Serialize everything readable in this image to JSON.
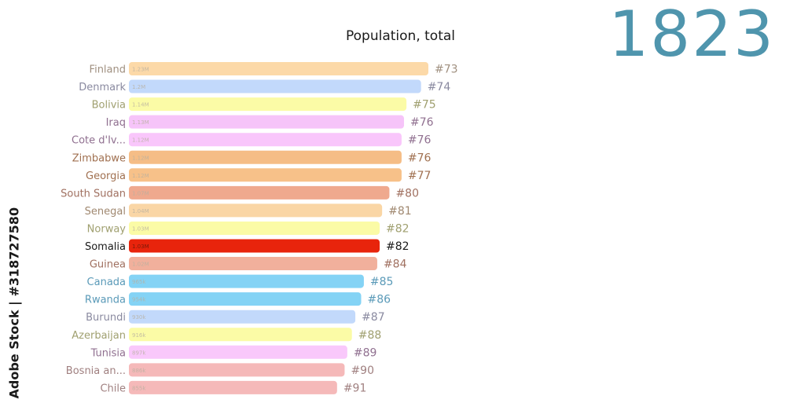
{
  "chart_data": {
    "type": "bar",
    "title": "Population, total",
    "year": "1823",
    "orientation": "horizontal",
    "categories": [
      "Finland",
      "Denmark",
      "Bolivia",
      "Iraq",
      "Cote d'Iv...",
      "Zimbabwe",
      "Georgia",
      "South Sudan",
      "Senegal",
      "Norway",
      "Somalia",
      "Guinea",
      "Canada",
      "Rwanda",
      "Burundi",
      "Azerbaijan",
      "Tunisia",
      "Bosnia an...",
      "Chile"
    ],
    "values": [
      1.23,
      1.2,
      1.14,
      1.13,
      1.12,
      1.12,
      1.12,
      1.07,
      1.04,
      1.03,
      1.03,
      1.02,
      0.965,
      0.954,
      0.93,
      0.916,
      0.897,
      0.886,
      0.855
    ],
    "value_labels": [
      "1.23M",
      "1.2M",
      "1.14M",
      "1.13M",
      "1.12M",
      "1.12M",
      "1.12M",
      "1.07M",
      "1.04M",
      "1.03M",
      "1.03M",
      "1.02M",
      "965k",
      "954k",
      "930k",
      "916k",
      "897k",
      "886k",
      "855k"
    ],
    "ranks": [
      "#73",
      "#74",
      "#75",
      "#76",
      "#76",
      "#76",
      "#77",
      "#80",
      "#81",
      "#82",
      "#82",
      "#84",
      "#85",
      "#86",
      "#87",
      "#88",
      "#89",
      "#90",
      "#91"
    ],
    "highlight": "Somalia",
    "unit": "millions",
    "colors": [
      "#fcd9a8",
      "#c2d9fb",
      "#fbfba6",
      "#f6c4f9",
      "#f9c6fb",
      "#f5bd86",
      "#f7c189",
      "#efa98e",
      "#fad6a5",
      "#fbfba6",
      "#e8240c",
      "#f1b09c",
      "#84d3f5",
      "#84d3f5",
      "#c2d9fb",
      "#fbfba6",
      "#f9c8fb",
      "#f5b9b9",
      "#f5b9b9"
    ],
    "label_colors": [
      "#a09080",
      "#8a8aa0",
      "#a0a070",
      "#907090",
      "#907090",
      "#a07050",
      "#a07050",
      "#a07060",
      "#a08870",
      "#a0a070",
      "#1a1a1a",
      "#a07060",
      "#5a9ab8",
      "#5a9ab8",
      "#8a8aa0",
      "#a0a070",
      "#907090",
      "#a08080",
      "#a08080"
    ]
  },
  "watermark": "Adobe Stock | #318727580"
}
